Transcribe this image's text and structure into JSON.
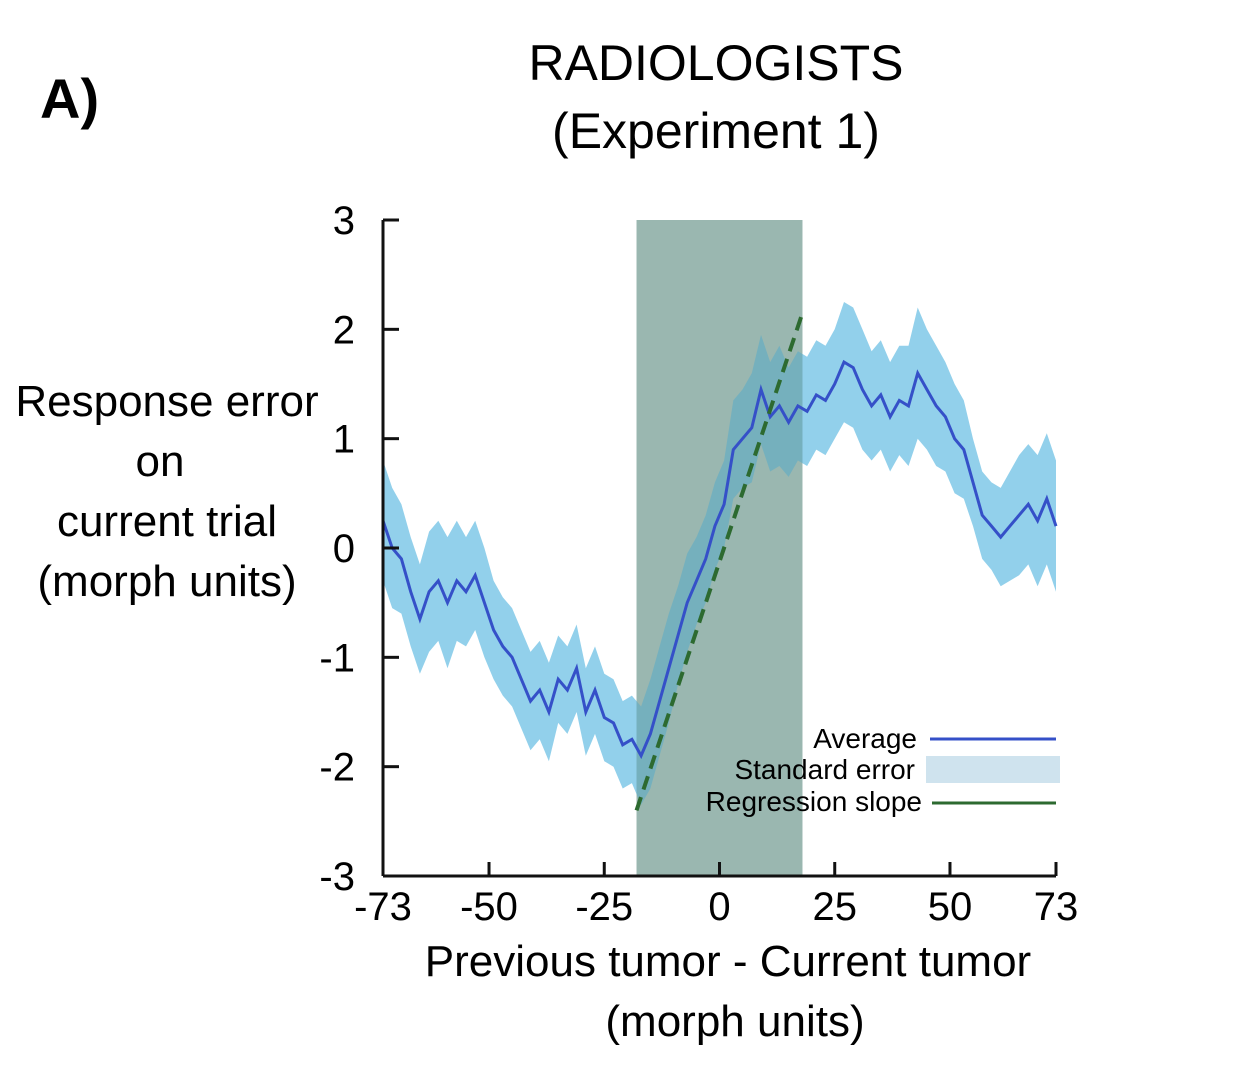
{
  "panel_label": "A)",
  "chart_data": {
    "type": "line",
    "title": [
      "RADIOLOGISTS",
      "(Experiment 1)"
    ],
    "xlabel": [
      "Previous tumor - Current tumor",
      "(morph units)"
    ],
    "ylabel": [
      "Response error",
      "on",
      "current trial",
      "(morph units)"
    ],
    "xlim": [
      -73,
      73
    ],
    "ylim": [
      -3,
      3
    ],
    "xticks": [
      -73,
      -50,
      -25,
      0,
      25,
      50,
      73
    ],
    "yticks": [
      -3,
      -2,
      -1,
      0,
      1,
      2,
      3
    ],
    "grid": false,
    "highlight_region": [
      -18,
      18
    ],
    "legend_position": "bottom-right",
    "series": [
      {
        "name": "Average",
        "color": "#3550c8",
        "x": [
          -73,
          -71,
          -69,
          -67,
          -65,
          -63,
          -61,
          -59,
          -57,
          -55,
          -53,
          -51,
          -49,
          -47,
          -45,
          -43,
          -41,
          -39,
          -37,
          -35,
          -33,
          -31,
          -29,
          -27,
          -25,
          -23,
          -21,
          -19,
          -17,
          -15,
          -13,
          -11,
          -9,
          -7,
          -5,
          -3,
          -1,
          1,
          3,
          5,
          7,
          9,
          11,
          13,
          15,
          17,
          19,
          21,
          23,
          25,
          27,
          29,
          31,
          33,
          35,
          37,
          39,
          41,
          43,
          45,
          47,
          49,
          51,
          53,
          55,
          57,
          59,
          61,
          63,
          65,
          67,
          69,
          71,
          73
        ],
        "y": [
          0.25,
          0.0,
          -0.1,
          -0.4,
          -0.65,
          -0.4,
          -0.3,
          -0.5,
          -0.3,
          -0.4,
          -0.25,
          -0.5,
          -0.75,
          -0.9,
          -1.0,
          -1.2,
          -1.4,
          -1.3,
          -1.5,
          -1.2,
          -1.3,
          -1.1,
          -1.5,
          -1.3,
          -1.55,
          -1.6,
          -1.8,
          -1.75,
          -1.9,
          -1.7,
          -1.4,
          -1.1,
          -0.8,
          -0.5,
          -0.3,
          -0.1,
          0.2,
          0.4,
          0.9,
          1.0,
          1.1,
          1.45,
          1.2,
          1.3,
          1.15,
          1.3,
          1.25,
          1.4,
          1.35,
          1.5,
          1.7,
          1.65,
          1.45,
          1.3,
          1.4,
          1.2,
          1.35,
          1.3,
          1.6,
          1.45,
          1.3,
          1.2,
          1.0,
          0.9,
          0.6,
          0.3,
          0.2,
          0.1,
          0.2,
          0.3,
          0.4,
          0.25,
          0.45,
          0.2
        ]
      },
      {
        "name": "Standard error",
        "color": "#73c3e6",
        "half_width": [
          0.55,
          0.55,
          0.5,
          0.5,
          0.5,
          0.55,
          0.55,
          0.6,
          0.55,
          0.5,
          0.5,
          0.5,
          0.45,
          0.45,
          0.45,
          0.45,
          0.45,
          0.45,
          0.45,
          0.4,
          0.4,
          0.4,
          0.4,
          0.4,
          0.4,
          0.4,
          0.4,
          0.4,
          0.45,
          0.5,
          0.5,
          0.5,
          0.45,
          0.45,
          0.4,
          0.4,
          0.4,
          0.4,
          0.45,
          0.45,
          0.5,
          0.5,
          0.5,
          0.55,
          0.5,
          0.5,
          0.5,
          0.5,
          0.5,
          0.5,
          0.55,
          0.55,
          0.55,
          0.5,
          0.5,
          0.5,
          0.5,
          0.55,
          0.6,
          0.55,
          0.55,
          0.5,
          0.5,
          0.45,
          0.4,
          0.4,
          0.4,
          0.45,
          0.5,
          0.55,
          0.55,
          0.6,
          0.6,
          0.6
        ]
      },
      {
        "name": "Regression slope",
        "color": "#2d6a30",
        "x": [
          -18,
          18
        ],
        "y": [
          -2.4,
          2.15
        ]
      }
    ]
  }
}
